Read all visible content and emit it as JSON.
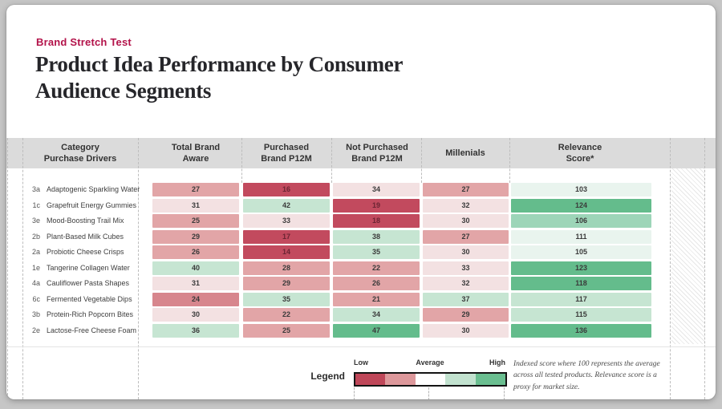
{
  "page": {
    "eyebrow": "Brand Stretch Test",
    "title": "Product Idea Performance by Consumer Audience Segments",
    "title_line1": "Product Idea Performance by Consumer",
    "title_line2": "Audience Segments"
  },
  "colors": {
    "r4": "#c24a5e",
    "r3": "#d7868d",
    "r2": "#e2a5a7",
    "r1": "#f3e1e2",
    "g0": "#e9f4ee",
    "g1": "#c6e5d2",
    "g2": "#9dd5b8",
    "g3": "#64bc8c",
    "accent": "#b3134a",
    "header_bg": "#dbdbdb",
    "r4_text": "#6b2433"
  },
  "table": {
    "headers": [
      {
        "l1": "Category",
        "l2": "Purchase Drivers"
      },
      {
        "l1": "Total Brand",
        "l2": "Aware"
      },
      {
        "l1": "Purchased",
        "l2": "Brand P12M"
      },
      {
        "l1": "Not Purchased",
        "l2": "Brand P12M"
      },
      {
        "l1": "Millenials",
        "l2": ""
      },
      {
        "l1": "Relevance",
        "l2": "Score*"
      }
    ],
    "rows": [
      {
        "code": "3a",
        "label": "Adaptogenic Sparkling Water",
        "cells": [
          {
            "v": 27,
            "c": "r2"
          },
          {
            "v": 16,
            "c": "r4"
          },
          {
            "v": 34,
            "c": "r1"
          },
          {
            "v": 27,
            "c": "r2"
          },
          {
            "v": 103,
            "c": "g0"
          }
        ]
      },
      {
        "code": "1c",
        "label": "Grapefruit Energy Gummies",
        "cells": [
          {
            "v": 31,
            "c": "r1"
          },
          {
            "v": 42,
            "c": "g1"
          },
          {
            "v": 19,
            "c": "r4"
          },
          {
            "v": 32,
            "c": "r1"
          },
          {
            "v": 124,
            "c": "g3"
          }
        ]
      },
      {
        "code": "3e",
        "label": "Mood-Boosting Trail Mix",
        "cells": [
          {
            "v": 25,
            "c": "r2"
          },
          {
            "v": 33,
            "c": "r1"
          },
          {
            "v": 18,
            "c": "r4"
          },
          {
            "v": 30,
            "c": "r1"
          },
          {
            "v": 106,
            "c": "g2"
          }
        ]
      },
      {
        "code": "2b",
        "label": "Plant-Based Milk Cubes",
        "cells": [
          {
            "v": 29,
            "c": "r2"
          },
          {
            "v": 17,
            "c": "r4"
          },
          {
            "v": 38,
            "c": "g1"
          },
          {
            "v": 27,
            "c": "r2"
          },
          {
            "v": 111,
            "c": "g0"
          }
        ]
      },
      {
        "code": "2a",
        "label": "Probiotic Cheese Crisps",
        "cells": [
          {
            "v": 26,
            "c": "r2"
          },
          {
            "v": 14,
            "c": "r4"
          },
          {
            "v": 35,
            "c": "g1"
          },
          {
            "v": 30,
            "c": "r1"
          },
          {
            "v": 105,
            "c": "g0"
          }
        ]
      },
      {
        "code": "1e",
        "label": "Tangerine Collagen Water",
        "cells": [
          {
            "v": 40,
            "c": "g1"
          },
          {
            "v": 28,
            "c": "r2"
          },
          {
            "v": 22,
            "c": "r2"
          },
          {
            "v": 33,
            "c": "r1"
          },
          {
            "v": 123,
            "c": "g3"
          }
        ]
      },
      {
        "code": "4a",
        "label": "Cauliflower Pasta Shapes",
        "cells": [
          {
            "v": 31,
            "c": "r1"
          },
          {
            "v": 29,
            "c": "r2"
          },
          {
            "v": 26,
            "c": "r2"
          },
          {
            "v": 32,
            "c": "r1"
          },
          {
            "v": 118,
            "c": "g3"
          }
        ]
      },
      {
        "code": "6c",
        "label": "Fermented Vegetable Dips",
        "cells": [
          {
            "v": 24,
            "c": "r3"
          },
          {
            "v": 35,
            "c": "g1"
          },
          {
            "v": 21,
            "c": "r2"
          },
          {
            "v": 37,
            "c": "g1"
          },
          {
            "v": 117,
            "c": "g1"
          }
        ]
      },
      {
        "code": "3b",
        "label": "Protein-Rich Popcorn Bites",
        "cells": [
          {
            "v": 30,
            "c": "r1"
          },
          {
            "v": 22,
            "c": "r2"
          },
          {
            "v": 34,
            "c": "g1"
          },
          {
            "v": 29,
            "c": "r2"
          },
          {
            "v": 115,
            "c": "g1"
          }
        ]
      },
      {
        "code": "2e",
        "label": "Lactose-Free Cheese Foam",
        "cells": [
          {
            "v": 36,
            "c": "g1"
          },
          {
            "v": 25,
            "c": "r2"
          },
          {
            "v": 47,
            "c": "g3"
          },
          {
            "v": 30,
            "c": "r1"
          },
          {
            "v": 136,
            "c": "g3"
          }
        ]
      }
    ]
  },
  "legend": {
    "label": "Legend",
    "low": "Low",
    "average": "Average",
    "high": "High",
    "segments": [
      "#bf4759",
      "#dd989b",
      "#ffffff",
      "#c2e2cf",
      "#6abe90"
    ]
  },
  "footnote": "Indexed score where 100 represents the average across all tested products. Relevance score is a proxy for market size.",
  "chart_data": {
    "type": "heatmap",
    "title": "Product Idea Performance by Consumer Audience Segments",
    "subtitle": "Brand Stretch Test",
    "row_codes": [
      "3a",
      "1c",
      "3e",
      "2b",
      "2a",
      "1e",
      "4a",
      "6c",
      "3b",
      "2e"
    ],
    "rows": [
      "Adaptogenic Sparkling Water",
      "Grapefruit Energy Gummies",
      "Mood-Boosting Trail Mix",
      "Plant-Based Milk Cubes",
      "Probiotic Cheese Crisps",
      "Tangerine Collagen Water",
      "Cauliflower Pasta Shapes",
      "Fermented Vegetable Dips",
      "Protein-Rich Popcorn Bites",
      "Lactose-Free Cheese Foam"
    ],
    "columns": [
      "Total Brand Aware",
      "Purchased Brand P12M",
      "Not Purchased Brand P12M",
      "Millenials",
      "Relevance Score*"
    ],
    "values": [
      [
        27,
        16,
        34,
        27,
        103
      ],
      [
        31,
        42,
        19,
        32,
        124
      ],
      [
        25,
        33,
        18,
        30,
        106
      ],
      [
        29,
        17,
        38,
        27,
        111
      ],
      [
        26,
        14,
        35,
        30,
        105
      ],
      [
        40,
        28,
        22,
        33,
        123
      ],
      [
        31,
        29,
        26,
        32,
        118
      ],
      [
        24,
        35,
        21,
        37,
        117
      ],
      [
        30,
        22,
        34,
        29,
        115
      ],
      [
        36,
        25,
        47,
        30,
        136
      ]
    ],
    "color_scale": {
      "low_color": "#bf4759",
      "mid_color": "#ffffff",
      "high_color": "#6abe90",
      "labels": [
        "Low",
        "Average",
        "High"
      ]
    },
    "legend_position": "bottom"
  }
}
